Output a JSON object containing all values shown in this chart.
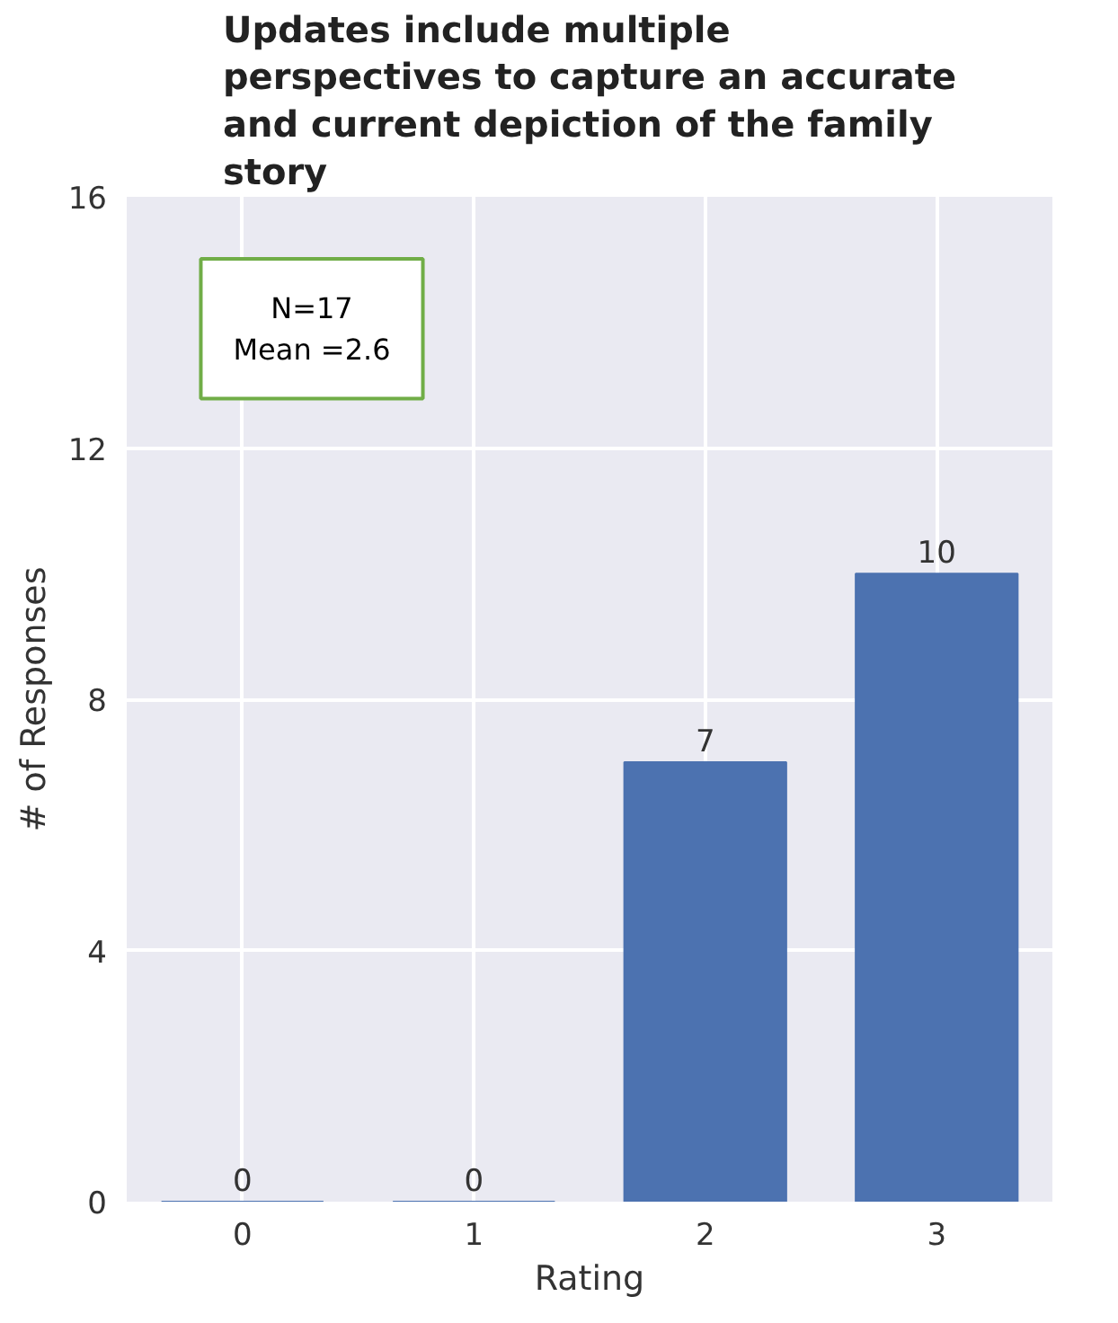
{
  "chart_data": {
    "type": "bar",
    "title": "Updates include multiple perspectives to capture an accurate and current depiction of the family story",
    "xlabel": "Rating",
    "ylabel": "# of Responses",
    "categories": [
      "0",
      "1",
      "2",
      "3"
    ],
    "values": [
      0,
      0,
      7,
      10
    ],
    "color": "#4c72b0",
    "ylim": [
      0,
      16
    ],
    "yticks": [
      0,
      4,
      8,
      12,
      16
    ],
    "grid": true,
    "data_labels": true,
    "annotations": [
      "N=17",
      "Mean =2.6"
    ]
  }
}
